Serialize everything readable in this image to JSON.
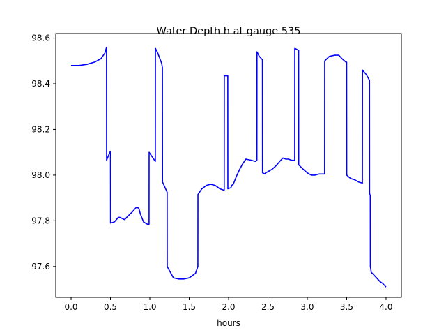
{
  "chart_data": {
    "type": "line",
    "title": "Water Depth h at gauge 535",
    "xlabel": "hours",
    "ylabel": "",
    "xlim": [
      -0.195,
      4.195
    ],
    "ylim": [
      97.465,
      98.62
    ],
    "xticks": [
      0.0,
      0.5,
      1.0,
      1.5,
      2.0,
      2.5,
      3.0,
      3.5,
      4.0
    ],
    "xtick_labels": [
      "0.0",
      "0.5",
      "1.0",
      "1.5",
      "2.0",
      "2.5",
      "3.0",
      "3.5",
      "4.0"
    ],
    "yticks": [
      97.6,
      97.8,
      98.0,
      98.2,
      98.4,
      98.6
    ],
    "ytick_labels": [
      "97.6",
      "97.8",
      "98.0",
      "98.2",
      "98.4",
      "98.6"
    ],
    "grid": false,
    "series": [
      {
        "color": "#0000ff",
        "x": [
          0.0,
          0.1,
          0.2,
          0.3,
          0.38,
          0.43,
          0.45,
          0.451,
          0.48,
          0.5,
          0.501,
          0.55,
          0.6,
          0.62,
          0.68,
          0.72,
          0.78,
          0.83,
          0.86,
          0.88,
          0.92,
          0.97,
          0.99,
          0.991,
          1.02,
          1.07,
          1.071,
          1.1,
          1.15,
          1.16,
          1.161,
          1.22,
          1.221,
          1.26,
          1.3,
          1.37,
          1.43,
          1.5,
          1.58,
          1.61,
          1.611,
          1.66,
          1.72,
          1.77,
          1.83,
          1.89,
          1.93,
          1.945,
          1.946,
          1.99,
          1.991,
          2.03,
          2.04,
          2.06,
          2.1,
          2.14,
          2.18,
          2.22,
          2.29,
          2.34,
          2.36,
          2.361,
          2.39,
          2.43,
          2.431,
          2.46,
          2.47,
          2.5,
          2.55,
          2.6,
          2.65,
          2.69,
          2.73,
          2.76,
          2.8,
          2.83,
          2.84,
          2.841,
          2.87,
          2.89,
          2.891,
          2.95,
          3.0,
          3.05,
          3.1,
          3.15,
          3.2,
          3.22,
          3.221,
          3.28,
          3.35,
          3.4,
          3.44,
          3.49,
          3.5,
          3.501,
          3.55,
          3.6,
          3.65,
          3.7,
          3.701,
          3.75,
          3.79,
          3.791,
          3.8,
          3.801,
          3.81,
          3.811,
          3.84,
          3.88,
          3.92,
          3.96,
          4.0
        ],
        "y": [
          98.48,
          98.48,
          98.485,
          98.495,
          98.51,
          98.535,
          98.56,
          98.065,
          98.09,
          98.105,
          97.79,
          97.795,
          97.815,
          97.815,
          97.805,
          97.82,
          97.84,
          97.86,
          97.855,
          97.83,
          97.795,
          97.785,
          97.785,
          98.1,
          98.085,
          98.06,
          98.555,
          98.535,
          98.49,
          98.47,
          97.97,
          97.925,
          97.6,
          97.575,
          97.55,
          97.545,
          97.545,
          97.55,
          97.57,
          97.6,
          97.915,
          97.94,
          97.955,
          97.96,
          97.955,
          97.94,
          97.935,
          97.935,
          98.435,
          98.435,
          97.94,
          97.945,
          97.955,
          97.96,
          97.995,
          98.025,
          98.05,
          98.07,
          98.065,
          98.06,
          98.065,
          98.54,
          98.52,
          98.505,
          98.01,
          98.005,
          98.01,
          98.015,
          98.025,
          98.04,
          98.06,
          98.075,
          98.07,
          98.07,
          98.065,
          98.065,
          98.065,
          98.555,
          98.55,
          98.545,
          98.045,
          98.025,
          98.01,
          98.0,
          98.0,
          98.005,
          98.005,
          98.005,
          98.5,
          98.52,
          98.525,
          98.525,
          98.51,
          98.495,
          98.495,
          98.0,
          97.985,
          97.98,
          97.97,
          97.965,
          98.46,
          98.44,
          98.415,
          97.92,
          97.91,
          97.6,
          97.58,
          97.575,
          97.565,
          97.55,
          97.535,
          97.525,
          97.51
        ]
      }
    ]
  }
}
